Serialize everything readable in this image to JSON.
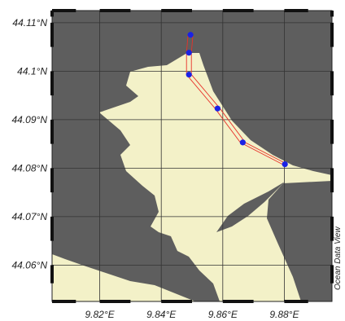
{
  "chart_data": {
    "type": "map",
    "x_ticks": [
      {
        "value": 9.82,
        "label": "9.82°E"
      },
      {
        "value": 9.84,
        "label": "9.84°E"
      },
      {
        "value": 9.86,
        "label": "9.86°E"
      },
      {
        "value": 9.88,
        "label": "9.88°E"
      }
    ],
    "y_ticks": [
      {
        "value": 44.06,
        "label": "44.06°N"
      },
      {
        "value": 44.07,
        "label": "44.07°N"
      },
      {
        "value": 44.08,
        "label": "44.08°N"
      },
      {
        "value": 44.09,
        "label": "44.09°N"
      },
      {
        "value": 44.1,
        "label": "44.1°N"
      },
      {
        "value": 44.11,
        "label": "44.11°N"
      }
    ],
    "xlim": [
      9.8045,
      9.8955
    ],
    "ylim": [
      44.0525,
      44.1125
    ],
    "grid": true,
    "stations": [
      {
        "lon": 9.8495,
        "lat": 44.1075
      },
      {
        "lon": 9.849,
        "lat": 44.1038
      },
      {
        "lon": 9.849,
        "lat": 44.0993
      },
      {
        "lon": 9.8583,
        "lat": 44.0923
      },
      {
        "lon": 9.8665,
        "lat": 44.0853
      },
      {
        "lon": 9.8802,
        "lat": 44.0808
      }
    ],
    "colors": {
      "land": "#5e5e5e",
      "sea": "#f3f1c8",
      "station": "#1a22e6",
      "track": "#e8322a",
      "grid": "#333333"
    }
  },
  "credit": "Ocean Data View"
}
